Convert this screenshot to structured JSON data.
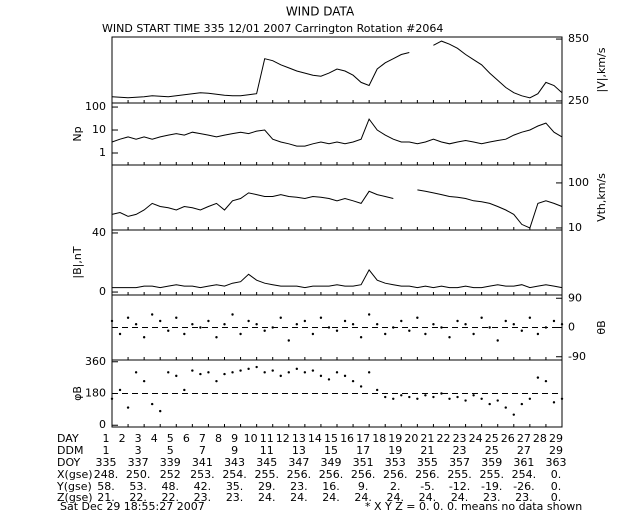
{
  "header": {
    "title": "WIND DATA",
    "subtitle": "WIND START TIME 335 12/01 2007 Carrington Rotation #2064"
  },
  "chart_data": {
    "type": "stacked-panels",
    "xlim": [
      335,
      363
    ],
    "x": [
      335,
      335.5,
      336,
      336.5,
      337,
      337.5,
      338,
      338.5,
      339,
      339.5,
      340,
      340.5,
      341,
      341.5,
      342,
      342.5,
      343,
      343.5,
      344,
      344.5,
      345,
      345.5,
      346,
      346.5,
      347,
      347.5,
      348,
      348.5,
      349,
      349.5,
      350,
      350.5,
      351,
      351.5,
      352,
      352.5,
      353,
      353.5,
      354,
      354.5,
      355,
      355.5,
      356,
      356.5,
      357,
      357.5,
      358,
      358.5,
      359,
      359.5,
      360,
      360.5,
      361,
      361.5,
      362,
      362.5,
      363
    ],
    "panels": [
      {
        "type": "line",
        "ylabel": "|V|,km/s",
        "axis_side": "right",
        "log": false,
        "ylim": [
          230,
          870
        ],
        "yticks": [
          250,
          850
        ],
        "values": [
          290,
          285,
          280,
          285,
          290,
          300,
          295,
          290,
          300,
          310,
          320,
          330,
          325,
          315,
          305,
          300,
          300,
          310,
          320,
          660,
          640,
          600,
          570,
          540,
          520,
          500,
          490,
          520,
          560,
          540,
          500,
          430,
          400,
          560,
          620,
          660,
          700,
          720,
          null,
          null,
          790,
          830,
          800,
          760,
          700,
          650,
          600,
          520,
          450,
          380,
          330,
          300,
          280,
          320,
          430,
          400,
          330
        ]
      },
      {
        "type": "line",
        "ylabel": "Np",
        "axis_side": "left",
        "log": true,
        "ylim": [
          0.3,
          150
        ],
        "yticks": [
          1,
          10,
          100
        ],
        "values": [
          3,
          4,
          5,
          4,
          5,
          4,
          5,
          6,
          7,
          6,
          8,
          7,
          6,
          5,
          6,
          7,
          8,
          7,
          9,
          10,
          4,
          3,
          2.5,
          2,
          2,
          2.5,
          3,
          2.5,
          3,
          2.5,
          3,
          4,
          30,
          10,
          6,
          4,
          3,
          3,
          2.5,
          3,
          4,
          3,
          2.5,
          3,
          3.5,
          3,
          2.5,
          3,
          3.5,
          4,
          6,
          8,
          10,
          15,
          20,
          8,
          5
        ]
      },
      {
        "type": "line",
        "ylabel": "Vth,km/s",
        "axis_side": "right",
        "log": true,
        "ylim": [
          9,
          250
        ],
        "yticks": [
          10,
          100
        ],
        "values": [
          20,
          22,
          18,
          20,
          25,
          35,
          30,
          28,
          25,
          30,
          28,
          25,
          30,
          35,
          25,
          40,
          45,
          60,
          55,
          50,
          50,
          55,
          50,
          48,
          45,
          50,
          48,
          45,
          40,
          45,
          40,
          35,
          65,
          55,
          50,
          45,
          null,
          null,
          70,
          65,
          60,
          55,
          50,
          48,
          45,
          40,
          38,
          35,
          30,
          25,
          20,
          12,
          10,
          35,
          40,
          35,
          30
        ]
      },
      {
        "type": "line",
        "ylabel": "|B|,nT",
        "axis_side": "left",
        "log": false,
        "ylim": [
          -2,
          42
        ],
        "yticks": [
          0,
          40
        ],
        "values": [
          3,
          3,
          3,
          3,
          4,
          4,
          3,
          4,
          5,
          4,
          4,
          3,
          4,
          5,
          4,
          6,
          7,
          12,
          8,
          6,
          5,
          4,
          4,
          4,
          3,
          4,
          4,
          4,
          5,
          4,
          4,
          5,
          15,
          8,
          6,
          5,
          4,
          4,
          3,
          4,
          3,
          4,
          3,
          3,
          4,
          3,
          3,
          4,
          5,
          4,
          4,
          5,
          3,
          4,
          5,
          4,
          3
        ]
      },
      {
        "type": "scatter",
        "ylabel": "θB",
        "axis_side": "right",
        "log": false,
        "ylim": [
          -100,
          100
        ],
        "yticks": [
          -90,
          0,
          90
        ],
        "dashed_line": 0,
        "values": [
          20,
          -20,
          30,
          10,
          -30,
          40,
          20,
          -10,
          30,
          -20,
          10,
          0,
          20,
          -30,
          10,
          40,
          -20,
          20,
          10,
          -10,
          0,
          30,
          -40,
          10,
          20,
          -20,
          30,
          0,
          -10,
          20,
          10,
          -30,
          40,
          10,
          -20,
          0,
          20,
          -10,
          30,
          -20,
          10,
          0,
          -30,
          20,
          10,
          -20,
          30,
          0,
          -40,
          20,
          10,
          -10,
          30,
          -20,
          0,
          20,
          10
        ]
      },
      {
        "type": "scatter",
        "ylabel": "φB",
        "axis_side": "left",
        "log": false,
        "ylim": [
          -10,
          370
        ],
        "yticks": [
          0,
          180,
          360
        ],
        "dashed_line": 180,
        "values": [
          150,
          200,
          100,
          300,
          250,
          120,
          80,
          300,
          280,
          200,
          310,
          290,
          300,
          250,
          290,
          300,
          310,
          320,
          330,
          300,
          310,
          280,
          300,
          320,
          300,
          310,
          280,
          260,
          300,
          280,
          250,
          220,
          300,
          200,
          160,
          150,
          170,
          160,
          150,
          170,
          160,
          180,
          150,
          160,
          140,
          170,
          150,
          120,
          140,
          100,
          60,
          120,
          150,
          270,
          250,
          130,
          150
        ]
      }
    ]
  },
  "table": {
    "rows": [
      {
        "label": "DAY",
        "step": 1,
        "cells": [
          "1",
          "2",
          "3",
          "4",
          "5",
          "6",
          "7",
          "8",
          "9",
          "10",
          "11",
          "12",
          "13",
          "14",
          "15",
          "16",
          "17",
          "18",
          "19",
          "20",
          "21",
          "22",
          "23",
          "24",
          "25",
          "26",
          "27",
          "28",
          "29"
        ]
      },
      {
        "label": "DDM",
        "step": 2,
        "cells": [
          "1",
          "3",
          "5",
          "7",
          "9",
          "11",
          "13",
          "15",
          "17",
          "19",
          "21",
          "23",
          "25",
          "27",
          "29"
        ]
      },
      {
        "label": "DOY",
        "step": 2,
        "cells": [
          "335",
          "337",
          "339",
          "341",
          "343",
          "345",
          "347",
          "349",
          "351",
          "353",
          "355",
          "357",
          "359",
          "361",
          "363"
        ]
      },
      {
        "label": "X(gse)",
        "step": 2,
        "cells": [
          "248.",
          "250.",
          "252",
          "253.",
          "254.",
          "255.",
          "256.",
          "256.",
          "256.",
          "256.",
          "256.",
          "255.",
          "255.",
          "254.",
          "0."
        ]
      },
      {
        "label": "Y(gse)",
        "step": 2,
        "cells": [
          "58.",
          "53.",
          "48.",
          "42.",
          "35.",
          "29.",
          "23.",
          "16.",
          "9.",
          "2.",
          "-5.",
          "-12.",
          "-19.",
          "-26.",
          "0."
        ]
      },
      {
        "label": "Z(gse)",
        "step": 2,
        "cells": [
          "21.",
          "22.",
          "22.",
          "23.",
          "23.",
          "24.",
          "24.",
          "24.",
          "24.",
          "24.",
          "24.",
          "24.",
          "23.",
          "23.",
          "0."
        ]
      }
    ]
  },
  "footer": {
    "date": "Sat Dec 29 18:55:27 2007",
    "note": "* X Y Z = 0. 0. 0. means no data shown"
  }
}
